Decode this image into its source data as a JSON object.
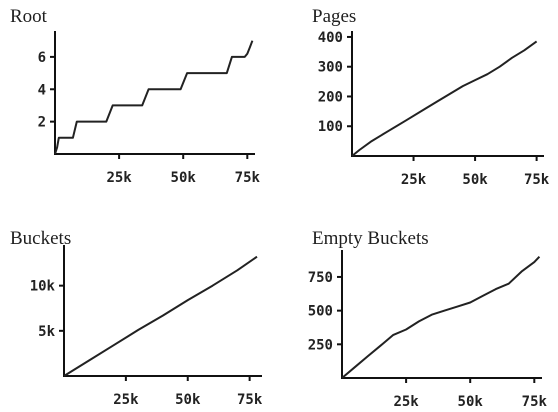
{
  "chart_data": [
    {
      "type": "line",
      "title": "Root",
      "xlabel": "",
      "ylabel": "",
      "xlim": [
        0,
        78000
      ],
      "ylim": [
        0,
        7.6
      ],
      "xticks": [
        25000,
        50000,
        75000
      ],
      "xtick_labels": [
        "25k",
        "50k",
        "75k"
      ],
      "yticks": [
        2,
        4,
        6
      ],
      "ytick_labels": [
        "2",
        "4",
        "6"
      ],
      "series": [
        {
          "x": [
            0,
            800,
            1500,
            7000,
            8500,
            20000,
            22500,
            34000,
            36500,
            49000,
            51500,
            67000,
            69000,
            74000,
            75000,
            76000,
            77000
          ],
          "y": [
            0,
            0.4,
            1,
            1,
            2,
            2,
            3,
            3,
            4,
            4,
            5,
            5,
            6,
            6,
            6.2,
            6.6,
            7
          ]
        }
      ]
    },
    {
      "type": "line",
      "title": "Pages",
      "xlabel": "",
      "ylabel": "",
      "xlim": [
        0,
        78000
      ],
      "ylim": [
        0,
        420
      ],
      "xticks": [
        25000,
        50000,
        75000
      ],
      "xtick_labels": [
        "25k",
        "50k",
        "75k"
      ],
      "yticks": [
        100,
        200,
        300,
        400
      ],
      "ytick_labels": [
        "100",
        "200",
        "300",
        "400"
      ],
      "series": [
        {
          "x": [
            0,
            3000,
            8000,
            15000,
            22000,
            30000,
            35000,
            40000,
            45000,
            50000,
            55000,
            60000,
            65000,
            70000,
            75000
          ],
          "y": [
            0,
            20,
            50,
            85,
            120,
            160,
            185,
            210,
            235,
            255,
            275,
            300,
            330,
            355,
            385
          ]
        }
      ]
    },
    {
      "type": "line",
      "title": "Buckets",
      "xlabel": "",
      "ylabel": "",
      "xlim": [
        0,
        80000
      ],
      "ylim": [
        0,
        14500
      ],
      "xticks": [
        25000,
        50000,
        75000
      ],
      "xtick_labels": [
        "25k",
        "50k",
        "75k"
      ],
      "yticks": [
        5000,
        10000
      ],
      "ytick_labels": [
        "5k",
        "10k"
      ],
      "series": [
        {
          "x": [
            0,
            10000,
            20000,
            30000,
            40000,
            50000,
            60000,
            70000,
            78000
          ],
          "y": [
            0,
            1700,
            3400,
            5100,
            6700,
            8400,
            10000,
            11700,
            13200
          ]
        }
      ]
    },
    {
      "type": "line",
      "title": "Empty Buckets",
      "xlabel": "",
      "ylabel": "",
      "xlim": [
        0,
        78000
      ],
      "ylim": [
        0,
        950
      ],
      "xticks": [
        25000,
        50000,
        75000
      ],
      "xtick_labels": [
        "25k",
        "50k",
        "75k"
      ],
      "yticks": [
        250,
        500,
        750
      ],
      "ytick_labels": [
        "250",
        "500",
        "750"
      ],
      "series": [
        {
          "x": [
            0,
            5000,
            10000,
            15000,
            20000,
            25000,
            30000,
            35000,
            40000,
            45000,
            50000,
            55000,
            60000,
            65000,
            70000,
            75000,
            77000
          ],
          "y": [
            0,
            80,
            160,
            240,
            320,
            360,
            420,
            470,
            500,
            530,
            560,
            610,
            660,
            700,
            790,
            860,
            900
          ]
        }
      ]
    }
  ]
}
